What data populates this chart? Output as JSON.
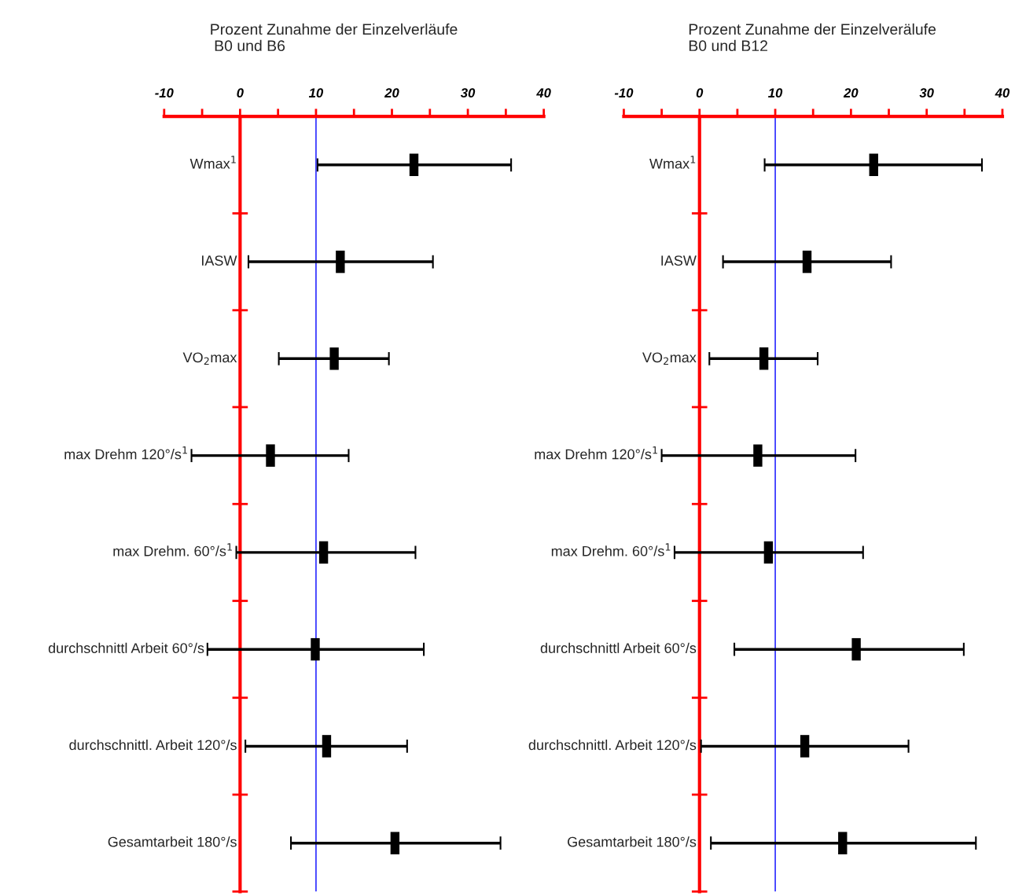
{
  "chart_data": [
    {
      "type": "scatter",
      "orientation": "horizontal",
      "title": "Prozent Zunahme der Einzelverläufe\n B0 und B6",
      "categories": [
        "Wmax$^{1}$",
        "IASW",
        "VO$_{2}$max",
        "max Drehm 120°/s$^{1}$",
        "max Drehm. 60°/s$^{1}$",
        "durchschnittl Arbeit 60°/s",
        "durchschnittl. Arbeit 120°/s",
        "Gesamtarbeit 180°/s"
      ],
      "series": [
        {
          "color": "#000000",
          "values": [
            22.9,
            13.2,
            12.4,
            4.0,
            11.0,
            9.9,
            11.4,
            20.4
          ],
          "errors": [
            [
              10.2,
              35.7
            ],
            [
              1.1,
              25.4
            ],
            [
              5.1,
              19.6
            ],
            [
              -6.4,
              14.3
            ],
            [
              -0.5,
              23.1
            ],
            [
              -4.3,
              24.2
            ],
            [
              0.7,
              22.0
            ],
            [
              6.7,
              34.3
            ]
          ]
        }
      ],
      "xlim": [
        -10,
        40
      ],
      "xticks": [
        -10,
        {
          "value": -5,
          "label": null
        },
        0,
        {
          "value": 5,
          "label": null
        },
        10,
        {
          "value": 15,
          "label": null
        },
        20,
        {
          "value": 25,
          "label": null
        },
        30,
        {
          "value": 35,
          "label": null
        },
        40
      ],
      "ref_lines": [
        {
          "axis": "x",
          "value": 10,
          "color": "#0000ff"
        }
      ],
      "grid": false,
      "legend": false
    },
    {
      "type": "scatter",
      "orientation": "horizontal",
      "title": "Prozent Zunahme der Einzelverälufe\nB0 und B12",
      "categories": [
        "Wmax$^{1}$",
        "IASW",
        "VO$_{2}$max",
        "max Drehm 120°/s$^{1}$",
        "max Drehm. 60°/s$^{1}$",
        "durchschnittl Arbeit 60°/s",
        "durchschnittl. Arbeit 120°/s",
        "Gesamtarbeit 180°/s"
      ],
      "series": [
        {
          "color": "#000000",
          "values": [
            23.0,
            14.2,
            8.5,
            7.7,
            9.1,
            20.7,
            13.9,
            18.9
          ],
          "errors": [
            [
              8.6,
              37.3
            ],
            [
              3.1,
              25.3
            ],
            [
              1.3,
              15.6
            ],
            [
              -5.0,
              20.6
            ],
            [
              -3.3,
              21.6
            ],
            [
              4.6,
              34.9
            ],
            [
              0.2,
              27.6
            ],
            [
              1.5,
              36.5
            ]
          ]
        }
      ],
      "xlim": [
        -10,
        40
      ],
      "xticks": [
        -10,
        {
          "value": -5,
          "label": null
        },
        0,
        {
          "value": 5,
          "label": null
        },
        10,
        {
          "value": 15,
          "label": null
        },
        20,
        {
          "value": 25,
          "label": null
        },
        30,
        {
          "value": 35,
          "label": null
        },
        40
      ],
      "ref_lines": [
        {
          "axis": "x",
          "value": 10,
          "color": "#0000ff"
        }
      ],
      "grid": false,
      "legend": false
    }
  ]
}
